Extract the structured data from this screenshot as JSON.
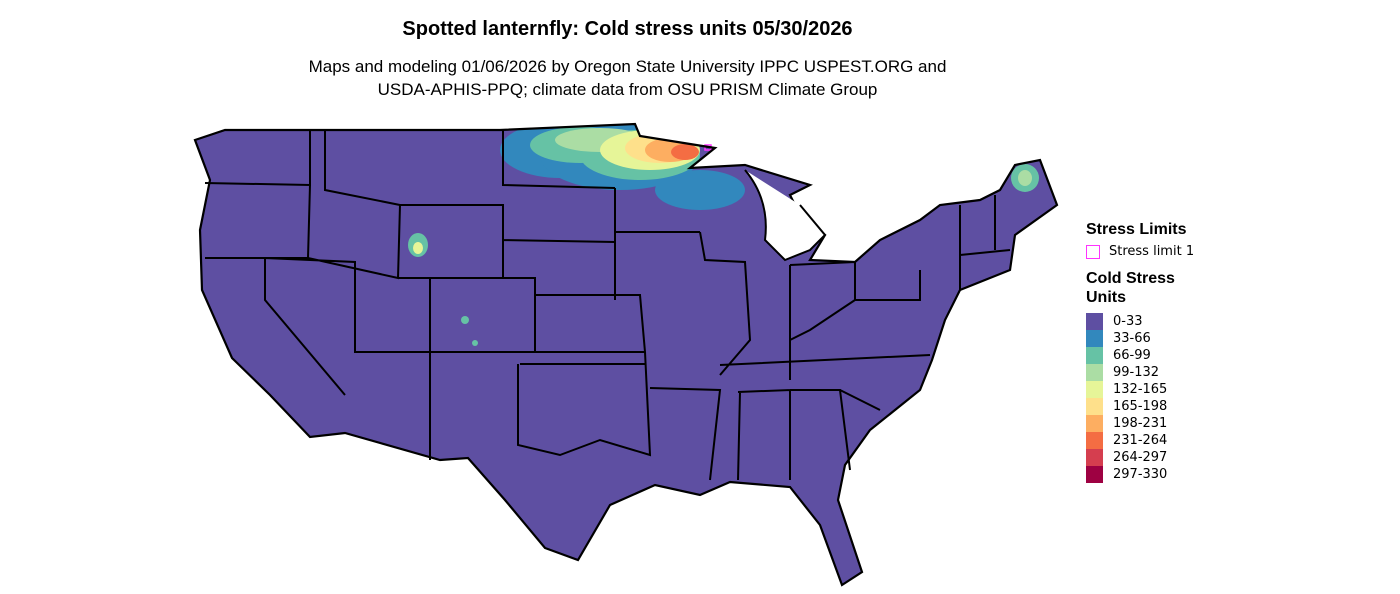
{
  "title": "Spotted lanternfly: Cold stress units 05/30/2026",
  "subtitle_line1": "Maps and modeling 01/06/2026 by Oregon State University IPPC USPEST.ORG and",
  "subtitle_line2": "USDA-APHIS-PPQ; climate data from OSU PRISM Climate Group",
  "map": {
    "base_color": "#5E4FA2",
    "border_color": "#000000",
    "stress_limit_color": "#FF33FF"
  },
  "legend": {
    "stress_title": "Stress Limits",
    "stress_item": "Stress limit 1",
    "units_title_1": "Cold Stress",
    "units_title_2": "Units",
    "items": [
      {
        "label": "0-33",
        "color": "#5E4FA2"
      },
      {
        "label": "33-66",
        "color": "#3288BD"
      },
      {
        "label": "66-99",
        "color": "#66C2A5"
      },
      {
        "label": "99-132",
        "color": "#ABDDA4"
      },
      {
        "label": "132-165",
        "color": "#E6F598"
      },
      {
        "label": "165-198",
        "color": "#FEE08B"
      },
      {
        "label": "198-231",
        "color": "#FDAE61"
      },
      {
        "label": "231-264",
        "color": "#F46D43"
      },
      {
        "label": "264-297",
        "color": "#D53E4F"
      },
      {
        "label": "297-330",
        "color": "#9E0142"
      }
    ]
  }
}
